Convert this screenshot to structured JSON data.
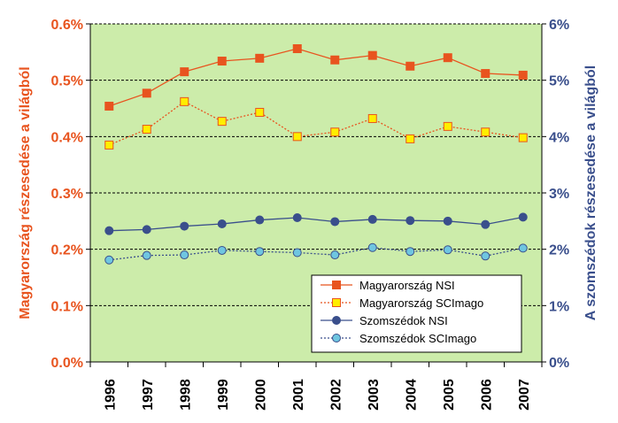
{
  "chart_data": {
    "type": "line",
    "title": "",
    "xlabel": "",
    "ylabel_left": "Magyarország részesedése a világból",
    "ylabel_right": "A szomszédok részesedése a világból",
    "ylim_left": [
      0,
      0.6
    ],
    "ylim_right": [
      0,
      6
    ],
    "grid": true,
    "legend_position": "bottom-right",
    "colors": {
      "plot_background": "#ccecaa",
      "grid": "#000000",
      "left_axis": "#e8541f",
      "right_axis": "#3a4f8c"
    },
    "x": [
      "1996",
      "1997",
      "1998",
      "1999",
      "2000",
      "2001",
      "2002",
      "2003",
      "2004",
      "2005",
      "2006",
      "2007"
    ],
    "yticks_left": [
      "0.0%",
      "0.1%",
      "0.2%",
      "0.3%",
      "0.4%",
      "0.5%",
      "0.6%"
    ],
    "yticks_right": [
      "0%",
      "1%",
      "2%",
      "3%",
      "4%",
      "5%",
      "6%"
    ],
    "series": [
      {
        "name": "Magyarország NSI",
        "axis": "left",
        "marker": "square",
        "line": "solid",
        "color": "#e8541f",
        "fill": "#e8541f",
        "values": [
          0.454,
          0.477,
          0.515,
          0.534,
          0.539,
          0.556,
          0.536,
          0.544,
          0.525,
          0.54,
          0.512,
          0.509
        ]
      },
      {
        "name": "Magyarország SCImago",
        "axis": "left",
        "marker": "square",
        "line": "dotted",
        "color": "#e8541f",
        "fill": "#ffee00",
        "values": [
          0.385,
          0.413,
          0.462,
          0.427,
          0.443,
          0.4,
          0.408,
          0.432,
          0.396,
          0.418,
          0.408,
          0.398
        ]
      },
      {
        "name": "Szomszédok NSI",
        "axis": "right",
        "marker": "circle",
        "line": "solid",
        "color": "#3a4f8c",
        "fill": "#3a4f8c",
        "values": [
          2.33,
          2.35,
          2.41,
          2.45,
          2.52,
          2.56,
          2.49,
          2.53,
          2.51,
          2.5,
          2.44,
          2.57
        ]
      },
      {
        "name": "Szomszédok SCImago",
        "axis": "right",
        "marker": "circle",
        "line": "dotted",
        "color": "#3a4f8c",
        "fill": "#6fc6e0",
        "values": [
          1.81,
          1.89,
          1.9,
          1.98,
          1.96,
          1.94,
          1.9,
          2.03,
          1.96,
          1.99,
          1.88,
          2.02
        ]
      }
    ]
  }
}
